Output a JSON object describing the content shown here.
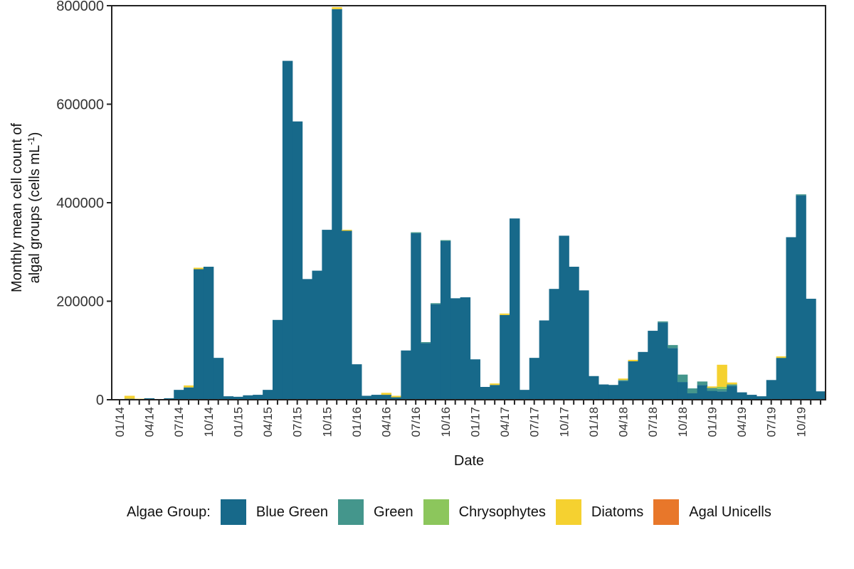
{
  "chart_data": {
    "type": "bar",
    "stacked": true,
    "xlabel": "Date",
    "ylabel_line1": "Monthly mean cell count of",
    "ylabel_line2": "algal groups (cells mL",
    "ylabel_sup": "-1",
    "ylabel_end": ")",
    "ylim": [
      0,
      800000
    ],
    "yticks": [
      "0",
      "200000",
      "400000",
      "600000",
      "800000"
    ],
    "grid": false,
    "legend_position": "bottom",
    "x_start": "2014-01",
    "x_tick_labels": [
      "01/14",
      "04/14",
      "07/14",
      "10/14",
      "01/15",
      "04/15",
      "07/15",
      "10/15",
      "01/16",
      "04/16",
      "07/16",
      "10/16",
      "01/17",
      "04/17",
      "07/17",
      "10/17",
      "01/18",
      "04/18",
      "07/18",
      "10/18",
      "01/19",
      "04/19",
      "07/19",
      "10/19"
    ],
    "categories": [
      "01/14",
      "02/14",
      "03/14",
      "04/14",
      "05/14",
      "06/14",
      "07/14",
      "08/14",
      "09/14",
      "10/14",
      "11/14",
      "12/14",
      "01/15",
      "02/15",
      "03/15",
      "04/15",
      "05/15",
      "06/15",
      "07/15",
      "08/15",
      "09/15",
      "10/15",
      "11/15",
      "12/15",
      "01/16",
      "02/16",
      "03/16",
      "04/16",
      "05/16",
      "06/16",
      "07/16",
      "08/16",
      "09/16",
      "10/16",
      "11/16",
      "12/16",
      "01/17",
      "02/17",
      "03/17",
      "04/17",
      "05/17",
      "06/17",
      "07/17",
      "08/17",
      "09/17",
      "10/17",
      "11/17",
      "12/17",
      "01/18",
      "02/18",
      "03/18",
      "04/18",
      "05/18",
      "06/18",
      "07/18",
      "08/18",
      "09/18",
      "10/18",
      "11/18",
      "12/18",
      "01/19",
      "02/19",
      "03/19",
      "04/19",
      "05/19",
      "06/19",
      "07/19",
      "08/19",
      "09/19",
      "10/19",
      "11/19",
      "12/19"
    ],
    "series": [
      {
        "name": "Blue Green",
        "color": "#17698a",
        "values": [
          0,
          2000,
          0,
          3000,
          0,
          3000,
          20000,
          25000,
          265000,
          270000,
          85000,
          7000,
          6000,
          9000,
          10000,
          20000,
          162000,
          688000,
          565000,
          245000,
          262000,
          345000,
          793000,
          343000,
          72000,
          8000,
          10000,
          10000,
          5000,
          100000,
          338000,
          115000,
          194000,
          322000,
          206000,
          208000,
          82000,
          26000,
          30000,
          172000,
          368000,
          20000,
          85000,
          161000,
          225000,
          333000,
          270000,
          222000,
          48000,
          31000,
          30000,
          38000,
          78000,
          97000,
          140000,
          157000,
          105000,
          36000,
          13000,
          30000,
          18000,
          17000,
          28000,
          15000,
          10000,
          7000,
          40000,
          85000,
          330000,
          415000,
          205000,
          17000
        ]
      },
      {
        "name": "Green",
        "color": "#44968c",
        "values": [
          0,
          0,
          0,
          0,
          0,
          0,
          0,
          0,
          0,
          0,
          0,
          0,
          0,
          0,
          0,
          0,
          0,
          0,
          0,
          0,
          0,
          0,
          0,
          0,
          0,
          0,
          0,
          0,
          0,
          0,
          2000,
          2000,
          2000,
          2000,
          0,
          0,
          0,
          0,
          0,
          0,
          0,
          0,
          0,
          0,
          0,
          0,
          0,
          0,
          0,
          0,
          0,
          2000,
          0,
          0,
          0,
          2000,
          6000,
          15000,
          10000,
          7000,
          6000,
          5000,
          3000,
          0,
          0,
          0,
          0,
          0,
          0,
          2000,
          0,
          0
        ]
      },
      {
        "name": "Chrysophytes",
        "color": "#8cc65c",
        "values": [
          0,
          0,
          0,
          0,
          0,
          0,
          0,
          0,
          0,
          0,
          0,
          0,
          0,
          0,
          0,
          0,
          0,
          0,
          0,
          0,
          0,
          0,
          0,
          0,
          0,
          0,
          0,
          0,
          0,
          0,
          0,
          0,
          0,
          0,
          0,
          0,
          0,
          0,
          0,
          0,
          0,
          0,
          0,
          0,
          0,
          0,
          0,
          0,
          0,
          0,
          0,
          0,
          0,
          0,
          0,
          0,
          0,
          0,
          0,
          0,
          0,
          4000,
          0,
          0,
          0,
          0,
          0,
          0,
          0,
          0,
          0,
          0
        ]
      },
      {
        "name": "Diatoms",
        "color": "#f5d130",
        "values": [
          0,
          6000,
          2000,
          0,
          0,
          0,
          0,
          4000,
          3000,
          0,
          0,
          0,
          0,
          0,
          0,
          0,
          0,
          0,
          0,
          0,
          0,
          0,
          4000,
          2000,
          0,
          0,
          0,
          4000,
          3000,
          0,
          0,
          0,
          0,
          0,
          0,
          0,
          0,
          0,
          3000,
          3000,
          0,
          0,
          0,
          0,
          0,
          0,
          0,
          0,
          0,
          0,
          0,
          3000,
          3000,
          0,
          0,
          0,
          0,
          0,
          0,
          0,
          3000,
          45000,
          4000,
          0,
          0,
          0,
          0,
          3000,
          0,
          0,
          0,
          0
        ]
      },
      {
        "name": "Agal Unicells",
        "color": "#e8772a",
        "values": [
          0,
          0,
          0,
          0,
          0,
          0,
          0,
          0,
          0,
          0,
          0,
          0,
          0,
          0,
          0,
          0,
          0,
          0,
          0,
          0,
          0,
          0,
          0,
          0,
          0,
          0,
          0,
          0,
          0,
          0,
          0,
          0,
          0,
          0,
          0,
          0,
          0,
          0,
          0,
          0,
          0,
          0,
          0,
          0,
          0,
          0,
          0,
          0,
          0,
          0,
          0,
          0,
          0,
          0,
          0,
          0,
          0,
          0,
          0,
          0,
          0,
          0,
          0,
          0,
          0,
          0,
          0,
          0,
          0,
          0,
          0,
          0
        ]
      }
    ]
  },
  "legend": {
    "title": "Algae Group:",
    "items": [
      {
        "label": "Blue Green",
        "color": "#17698a"
      },
      {
        "label": "Green",
        "color": "#44968c"
      },
      {
        "label": "Chrysophytes",
        "color": "#8cc65c"
      },
      {
        "label": "Diatoms",
        "color": "#f5d130"
      },
      {
        "label": "Agal Unicells",
        "color": "#e8772a"
      }
    ]
  }
}
